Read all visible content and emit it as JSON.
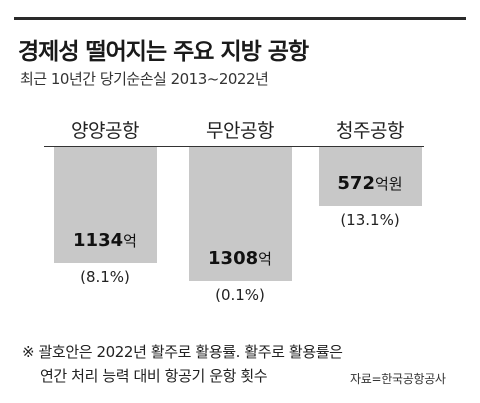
{
  "header": {
    "title": "경제성 떨어지는 주요 지방 공항",
    "subtitle": "최근 10년간 당기순손실 2013~2022년"
  },
  "chart_data": {
    "type": "bar",
    "title": "경제성 떨어지는 주요 지방 공항",
    "subtitle": "최근 10년간 당기순손실 2013~2022년",
    "categories": [
      "양양공항",
      "무안공항",
      "청주공항"
    ],
    "values": [
      1134,
      1308,
      572
    ],
    "value_labels": [
      "1134",
      "1308",
      "572"
    ],
    "units": [
      "억",
      "억",
      "억원"
    ],
    "utilization_labels": [
      "(8.1%)",
      "(0.1%)",
      "(13.1%)"
    ],
    "utilization": [
      8.1,
      0.1,
      13.1
    ],
    "ylim": [
      0,
      1308
    ],
    "orientation": "downward",
    "colors": {
      "bar": "#c8c8c8",
      "axis": "#333333"
    }
  },
  "footnote": {
    "line1": "※ 괄호안은 2022년 활주로 활용률. 활주로 활용률은",
    "line2": "연간 처리 능력 대비 항공기 운항 횟수",
    "source": "자료=한국공항공사"
  }
}
